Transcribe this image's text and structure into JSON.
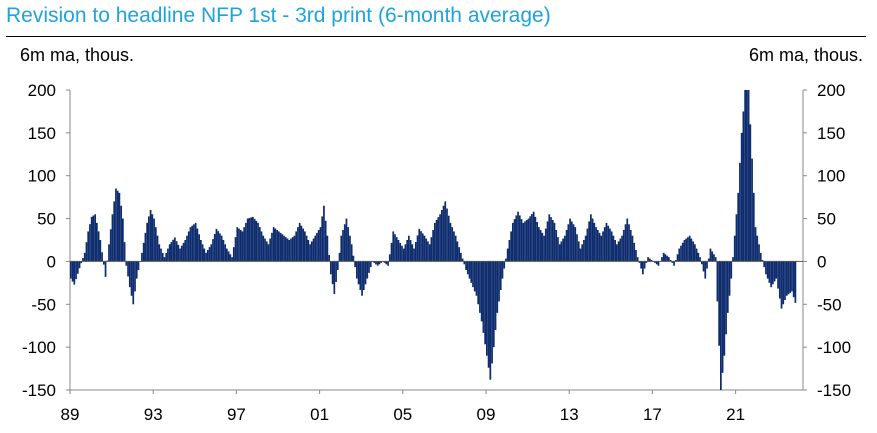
{
  "chart_data": {
    "type": "bar",
    "title": "Revision to headline NFP 1st - 3rd print (6-month average)",
    "ylabel_left": "6m ma, thous.",
    "ylabel_right": "6m ma, thous.",
    "ylim": [
      -150,
      200
    ],
    "yticks": [
      "200",
      "150",
      "100",
      "50",
      "0",
      "-50",
      "-100",
      "-150"
    ],
    "xticks": [
      "89",
      "93",
      "97",
      "01",
      "05",
      "09",
      "13",
      "17",
      "21"
    ],
    "x_start_year": 1989,
    "bar_color": "#0f2d6e",
    "series": [
      {
        "values": [
          {
            "x": "1989-01",
            "y": -20
          },
          {
            "x": "1989-03",
            "y": -27
          },
          {
            "x": "1989-06",
            "y": -8
          },
          {
            "x": "1989-09",
            "y": 10
          },
          {
            "x": "1989-11",
            "y": 35
          },
          {
            "x": "1990-01",
            "y": 52
          },
          {
            "x": "1990-03",
            "y": 55
          },
          {
            "x": "1990-06",
            "y": 25
          },
          {
            "x": "1990-09",
            "y": -18
          },
          {
            "x": "1990-11",
            "y": 20
          },
          {
            "x": "1991-01",
            "y": 55
          },
          {
            "x": "1991-03",
            "y": 85
          },
          {
            "x": "1991-05",
            "y": 80
          },
          {
            "x": "1991-07",
            "y": 50
          },
          {
            "x": "1991-09",
            "y": -5
          },
          {
            "x": "1991-11",
            "y": -30
          },
          {
            "x": "1992-01",
            "y": -50
          },
          {
            "x": "1992-03",
            "y": -20
          },
          {
            "x": "1992-06",
            "y": 10
          },
          {
            "x": "1992-09",
            "y": 45
          },
          {
            "x": "1992-11",
            "y": 60
          },
          {
            "x": "1993-01",
            "y": 50
          },
          {
            "x": "1993-04",
            "y": 20
          },
          {
            "x": "1993-07",
            "y": 5
          },
          {
            "x": "1993-10",
            "y": 20
          },
          {
            "x": "1994-01",
            "y": 28
          },
          {
            "x": "1994-04",
            "y": 15
          },
          {
            "x": "1994-07",
            "y": 25
          },
          {
            "x": "1994-10",
            "y": 40
          },
          {
            "x": "1995-01",
            "y": 45
          },
          {
            "x": "1995-04",
            "y": 25
          },
          {
            "x": "1995-07",
            "y": 10
          },
          {
            "x": "1995-10",
            "y": 20
          },
          {
            "x": "1996-01",
            "y": 38
          },
          {
            "x": "1996-04",
            "y": 30
          },
          {
            "x": "1996-07",
            "y": 15
          },
          {
            "x": "1996-10",
            "y": 5
          },
          {
            "x": "1997-01",
            "y": 40
          },
          {
            "x": "1997-04",
            "y": 35
          },
          {
            "x": "1997-07",
            "y": 50
          },
          {
            "x": "1997-10",
            "y": 52
          },
          {
            "x": "1998-01",
            "y": 45
          },
          {
            "x": "1998-04",
            "y": 30
          },
          {
            "x": "1998-07",
            "y": 20
          },
          {
            "x": "1998-10",
            "y": 40
          },
          {
            "x": "1999-01",
            "y": 35
          },
          {
            "x": "1999-04",
            "y": 30
          },
          {
            "x": "1999-07",
            "y": 25
          },
          {
            "x": "1999-10",
            "y": 30
          },
          {
            "x": "2000-01",
            "y": 45
          },
          {
            "x": "2000-04",
            "y": 35
          },
          {
            "x": "2000-07",
            "y": 20
          },
          {
            "x": "2000-10",
            "y": 30
          },
          {
            "x": "2001-01",
            "y": 40
          },
          {
            "x": "2001-03",
            "y": 65
          },
          {
            "x": "2001-05",
            "y": 30
          },
          {
            "x": "2001-07",
            "y": -15
          },
          {
            "x": "2001-09",
            "y": -38
          },
          {
            "x": "2001-11",
            "y": -10
          },
          {
            "x": "2002-01",
            "y": 30
          },
          {
            "x": "2002-04",
            "y": 50
          },
          {
            "x": "2002-07",
            "y": 20
          },
          {
            "x": "2002-10",
            "y": -20
          },
          {
            "x": "2003-01",
            "y": -40
          },
          {
            "x": "2003-04",
            "y": -20
          },
          {
            "x": "2003-07",
            "y": 0
          },
          {
            "x": "2003-10",
            "y": -5
          },
          {
            "x": "2004-01",
            "y": 0
          },
          {
            "x": "2004-04",
            "y": -5
          },
          {
            "x": "2004-07",
            "y": 35
          },
          {
            "x": "2004-10",
            "y": 25
          },
          {
            "x": "2005-01",
            "y": 15
          },
          {
            "x": "2005-04",
            "y": 30
          },
          {
            "x": "2005-07",
            "y": 15
          },
          {
            "x": "2005-10",
            "y": 38
          },
          {
            "x": "2006-01",
            "y": 30
          },
          {
            "x": "2006-04",
            "y": 20
          },
          {
            "x": "2006-07",
            "y": 45
          },
          {
            "x": "2006-10",
            "y": 55
          },
          {
            "x": "2007-01",
            "y": 70
          },
          {
            "x": "2007-04",
            "y": 45
          },
          {
            "x": "2007-07",
            "y": 30
          },
          {
            "x": "2007-10",
            "y": 10
          },
          {
            "x": "2008-01",
            "y": -10
          },
          {
            "x": "2008-04",
            "y": -25
          },
          {
            "x": "2008-07",
            "y": -40
          },
          {
            "x": "2008-10",
            "y": -70
          },
          {
            "x": "2009-01",
            "y": -110
          },
          {
            "x": "2009-03",
            "y": -138
          },
          {
            "x": "2009-05",
            "y": -100
          },
          {
            "x": "2009-07",
            "y": -60
          },
          {
            "x": "2009-10",
            "y": -20
          },
          {
            "x": "2010-01",
            "y": 15
          },
          {
            "x": "2010-04",
            "y": 45
          },
          {
            "x": "2010-07",
            "y": 58
          },
          {
            "x": "2010-10",
            "y": 45
          },
          {
            "x": "2011-01",
            "y": 50
          },
          {
            "x": "2011-04",
            "y": 58
          },
          {
            "x": "2011-07",
            "y": 40
          },
          {
            "x": "2011-10",
            "y": 30
          },
          {
            "x": "2012-01",
            "y": 55
          },
          {
            "x": "2012-04",
            "y": 45
          },
          {
            "x": "2012-07",
            "y": 20
          },
          {
            "x": "2012-10",
            "y": 30
          },
          {
            "x": "2013-01",
            "y": 50
          },
          {
            "x": "2013-04",
            "y": 40
          },
          {
            "x": "2013-07",
            "y": 15
          },
          {
            "x": "2013-10",
            "y": 30
          },
          {
            "x": "2014-01",
            "y": 55
          },
          {
            "x": "2014-04",
            "y": 40
          },
          {
            "x": "2014-07",
            "y": 30
          },
          {
            "x": "2014-10",
            "y": 45
          },
          {
            "x": "2015-01",
            "y": 35
          },
          {
            "x": "2015-04",
            "y": 20
          },
          {
            "x": "2015-07",
            "y": 30
          },
          {
            "x": "2015-10",
            "y": 50
          },
          {
            "x": "2016-01",
            "y": 30
          },
          {
            "x": "2016-04",
            "y": 5
          },
          {
            "x": "2016-07",
            "y": -15
          },
          {
            "x": "2016-10",
            "y": 5
          },
          {
            "x": "2017-01",
            "y": 0
          },
          {
            "x": "2017-04",
            "y": -5
          },
          {
            "x": "2017-07",
            "y": 10
          },
          {
            "x": "2017-10",
            "y": 5
          },
          {
            "x": "2018-01",
            "y": -5
          },
          {
            "x": "2018-04",
            "y": 15
          },
          {
            "x": "2018-07",
            "y": 25
          },
          {
            "x": "2018-10",
            "y": 30
          },
          {
            "x": "2019-01",
            "y": 20
          },
          {
            "x": "2019-04",
            "y": 5
          },
          {
            "x": "2019-07",
            "y": -20
          },
          {
            "x": "2019-10",
            "y": 15
          },
          {
            "x": "2020-01",
            "y": 5
          },
          {
            "x": "2020-04",
            "y": -150
          },
          {
            "x": "2020-06",
            "y": -110
          },
          {
            "x": "2020-08",
            "y": -60
          },
          {
            "x": "2020-10",
            "y": -20
          },
          {
            "x": "2020-12",
            "y": 30
          },
          {
            "x": "2021-02",
            "y": 80
          },
          {
            "x": "2021-04",
            "y": 150
          },
          {
            "x": "2021-06",
            "y": 200
          },
          {
            "x": "2021-08",
            "y": 200
          },
          {
            "x": "2021-10",
            "y": 120
          },
          {
            "x": "2021-12",
            "y": 40
          },
          {
            "x": "2022-03",
            "y": 10
          },
          {
            "x": "2022-06",
            "y": -15
          },
          {
            "x": "2022-09",
            "y": -30
          },
          {
            "x": "2022-12",
            "y": -20
          },
          {
            "x": "2023-03",
            "y": -55
          },
          {
            "x": "2023-06",
            "y": -40
          },
          {
            "x": "2023-09",
            "y": -35
          },
          {
            "x": "2023-12",
            "y": -55
          }
        ]
      }
    ]
  }
}
